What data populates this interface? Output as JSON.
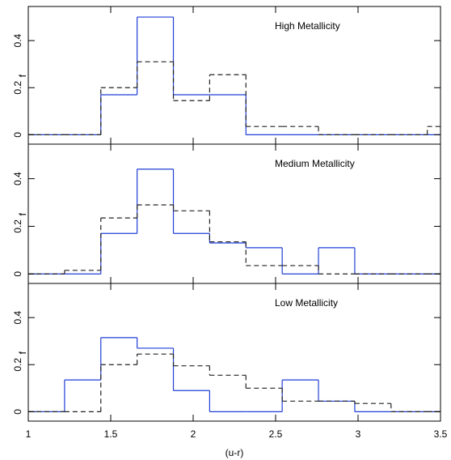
{
  "chart_data": [
    {
      "type": "histogram",
      "title": "High Metallicity",
      "ylabel": "f",
      "bins": [
        1.0,
        1.22,
        1.44,
        1.66,
        1.88,
        2.1,
        2.32,
        2.54,
        2.76,
        2.98,
        3.2,
        3.42,
        3.64
      ],
      "xlim": [
        1,
        3.5
      ],
      "ylim": [
        -0.04,
        0.545
      ],
      "yticks": [
        0,
        0.2,
        0.4
      ],
      "series": [
        {
          "color": "#1f3fd6",
          "dashed": false,
          "values": [
            0,
            0,
            0.17,
            0.5,
            0.17,
            0.17,
            0,
            0,
            0,
            0,
            0,
            0
          ]
        },
        {
          "color": "#222222",
          "dashed": true,
          "values": [
            0,
            0,
            0.2,
            0.31,
            0.145,
            0.255,
            0.035,
            0.035,
            0,
            0,
            0,
            0.035
          ]
        }
      ]
    },
    {
      "type": "histogram",
      "title": "Medium Metallicity",
      "ylabel": "f",
      "bins": [
        1.0,
        1.22,
        1.44,
        1.66,
        1.88,
        2.1,
        2.32,
        2.54,
        2.76,
        2.98,
        3.2,
        3.42,
        3.64
      ],
      "xlim": [
        1,
        3.5
      ],
      "ylim": [
        -0.04,
        0.545
      ],
      "yticks": [
        0,
        0.2,
        0.4
      ],
      "series": [
        {
          "color": "#1f3fd6",
          "dashed": false,
          "values": [
            0,
            0,
            0.17,
            0.44,
            0.17,
            0.13,
            0.11,
            0,
            0.11,
            0,
            0,
            0
          ]
        },
        {
          "color": "#222222",
          "dashed": true,
          "values": [
            0,
            0.015,
            0.235,
            0.29,
            0.265,
            0.135,
            0.035,
            0.035,
            0,
            0,
            0,
            0
          ]
        }
      ]
    },
    {
      "type": "histogram",
      "title": "Low Metallicity",
      "ylabel": "f",
      "xlabel": "(u-r)",
      "bins": [
        1.0,
        1.22,
        1.44,
        1.66,
        1.88,
        2.1,
        2.32,
        2.54,
        2.76,
        2.98,
        3.2,
        3.42,
        3.64
      ],
      "xlim": [
        1,
        3.5
      ],
      "xticks": [
        1,
        1.5,
        2,
        2.5,
        3,
        3.5
      ],
      "ylim": [
        -0.04,
        0.545
      ],
      "yticks": [
        0,
        0.2,
        0.4
      ],
      "series": [
        {
          "color": "#1f3fd6",
          "dashed": false,
          "values": [
            0,
            0.135,
            0.315,
            0.27,
            0.09,
            0,
            0,
            0.135,
            0.045,
            0,
            0,
            0
          ]
        },
        {
          "color": "#222222",
          "dashed": true,
          "values": [
            0,
            0,
            0.2,
            0.245,
            0.195,
            0.155,
            0.1,
            0.045,
            0.045,
            0.035,
            0,
            0
          ]
        }
      ]
    }
  ]
}
